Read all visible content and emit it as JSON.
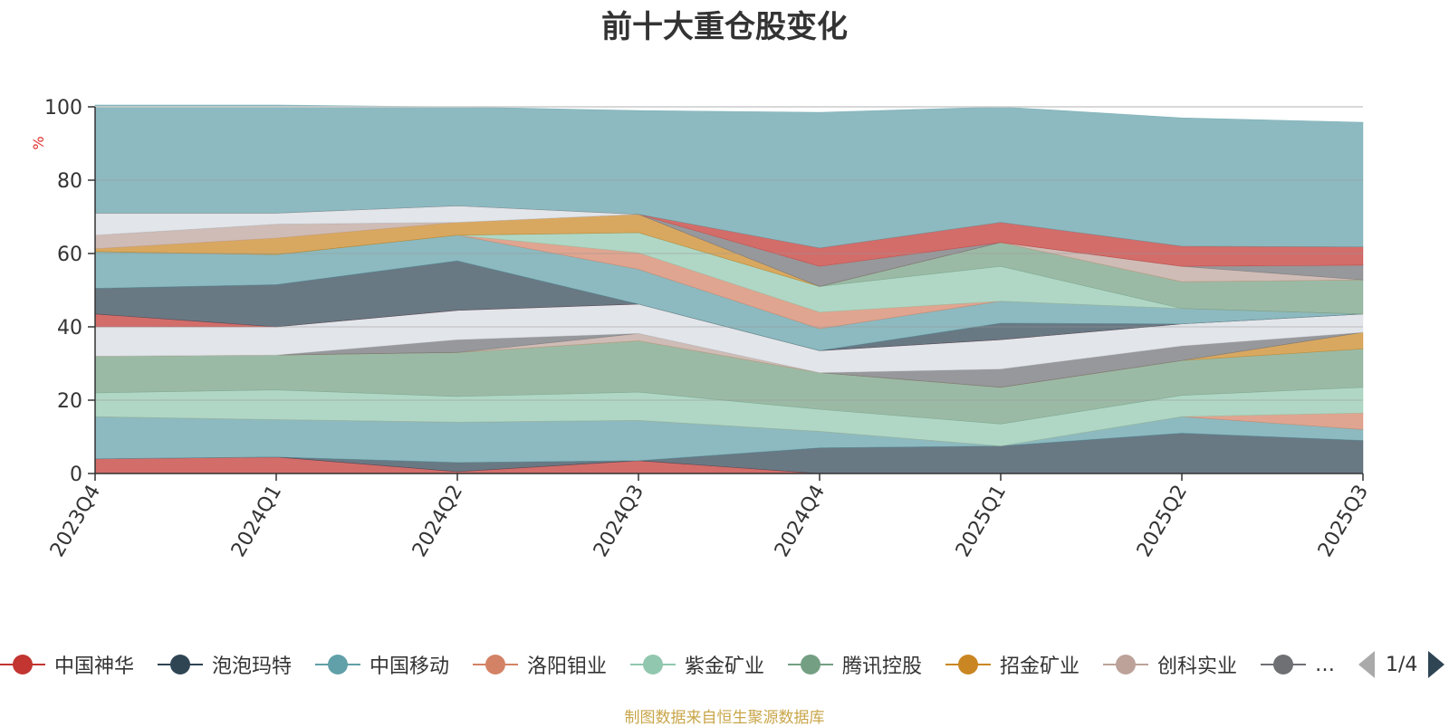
{
  "title": "前十大重仓股变化",
  "footer": "制图数据来自恒生聚源数据库",
  "pager": {
    "text": "1/4"
  },
  "legend": [
    {
      "name": "中国神华",
      "color": "#c23531"
    },
    {
      "name": "泡泡玛特",
      "color": "#2f4554"
    },
    {
      "name": "中国移动",
      "color": "#61a0a8"
    },
    {
      "name": "洛阳钼业",
      "color": "#d48265"
    },
    {
      "name": "紫金矿业",
      "color": "#91c7ae"
    },
    {
      "name": "腾讯控股",
      "color": "#749f83"
    },
    {
      "name": "招金矿业",
      "color": "#ca8622"
    },
    {
      "name": "创科实业",
      "color": "#bda29a"
    },
    {
      "name": "…",
      "color": "#6e7074"
    }
  ],
  "chart_data": {
    "type": "area",
    "stacked": true,
    "title": "前十大重仓股变化",
    "categories": [
      "2023Q4",
      "2024Q1",
      "2024Q2",
      "2024Q3",
      "2024Q4",
      "2025Q1",
      "2025Q2",
      "2025Q3"
    ],
    "ylabel": "%",
    "ylim": [
      0,
      100
    ],
    "yticks": [
      0,
      20,
      40,
      60,
      80,
      100
    ],
    "series": [
      {
        "color": "#c23531",
        "values": [
          4,
          4.5,
          0.5,
          3.5,
          0,
          0,
          0,
          0
        ]
      },
      {
        "color": "#2f4554",
        "values": [
          0,
          0,
          2.5,
          0,
          7,
          7.5,
          11,
          9
        ]
      },
      {
        "color": "#61a0a8",
        "values": [
          11.5,
          10.2,
          11,
          11,
          4.5,
          0,
          4.5,
          3
        ]
      },
      {
        "color": "#d48265",
        "values": [
          0,
          0,
          0,
          0,
          0,
          0,
          0,
          4.5
        ]
      },
      {
        "color": "#91c7ae",
        "values": [
          6.5,
          8.1,
          7,
          7.7,
          6,
          6,
          5.8,
          7
        ]
      },
      {
        "color": "#749f83",
        "values": [
          10,
          9.5,
          12,
          14,
          10,
          10,
          9.5,
          10.5
        ]
      },
      {
        "color": "#ca8622",
        "values": [
          0,
          0,
          0,
          0,
          0,
          0,
          0,
          4.5
        ]
      },
      {
        "color": "#bda29a",
        "values": [
          0,
          0,
          0,
          2,
          0,
          0,
          0,
          0
        ]
      },
      {
        "color": "#6e7074",
        "values": [
          0,
          0,
          3.5,
          0,
          0,
          5,
          4,
          0
        ]
      },
      {
        "color": "#d7dbe1",
        "values": [
          8,
          7.7,
          8,
          8,
          6,
          8,
          6,
          5
        ]
      },
      {
        "color": "#c23531",
        "values": [
          3.5,
          0,
          0,
          0,
          0,
          0,
          0,
          0
        ]
      },
      {
        "color": "#2f4554",
        "values": [
          7,
          11.5,
          13.5,
          0,
          0,
          4.5,
          0,
          0
        ]
      },
      {
        "color": "#61a0a8",
        "values": [
          10,
          8.2,
          7,
          9.5,
          6,
          6,
          4.2,
          0
        ]
      },
      {
        "color": "#d48265",
        "values": [
          0,
          0,
          0,
          4.5,
          4.5,
          0,
          0,
          0
        ]
      },
      {
        "color": "#91c7ae",
        "values": [
          0,
          0,
          0,
          5.5,
          7,
          9.5,
          0,
          0
        ]
      },
      {
        "color": "#749f83",
        "values": [
          0,
          0,
          0,
          0,
          0,
          6.5,
          7.3,
          9.3
        ]
      },
      {
        "color": "#ca8622",
        "values": [
          0.8,
          4.5,
          3.5,
          5,
          0,
          0,
          0,
          0
        ]
      },
      {
        "color": "#bda29a",
        "values": [
          3.7,
          3.8,
          0,
          0,
          0,
          0,
          4.2,
          0
        ]
      },
      {
        "color": "#6e7074",
        "values": [
          0,
          0,
          0,
          0,
          5.5,
          0,
          0,
          4
        ]
      },
      {
        "color": "#d7dbe1",
        "values": [
          6,
          3,
          4.5,
          0,
          0,
          0,
          0,
          0
        ]
      },
      {
        "color": "#c23531",
        "values": [
          0,
          0,
          0,
          0,
          5,
          5.5,
          5.5,
          5
        ]
      },
      {
        "color": "#61a0a8",
        "values": [
          29.5,
          29.5,
          27,
          28.3,
          37,
          31.5,
          35,
          34
        ]
      }
    ]
  }
}
